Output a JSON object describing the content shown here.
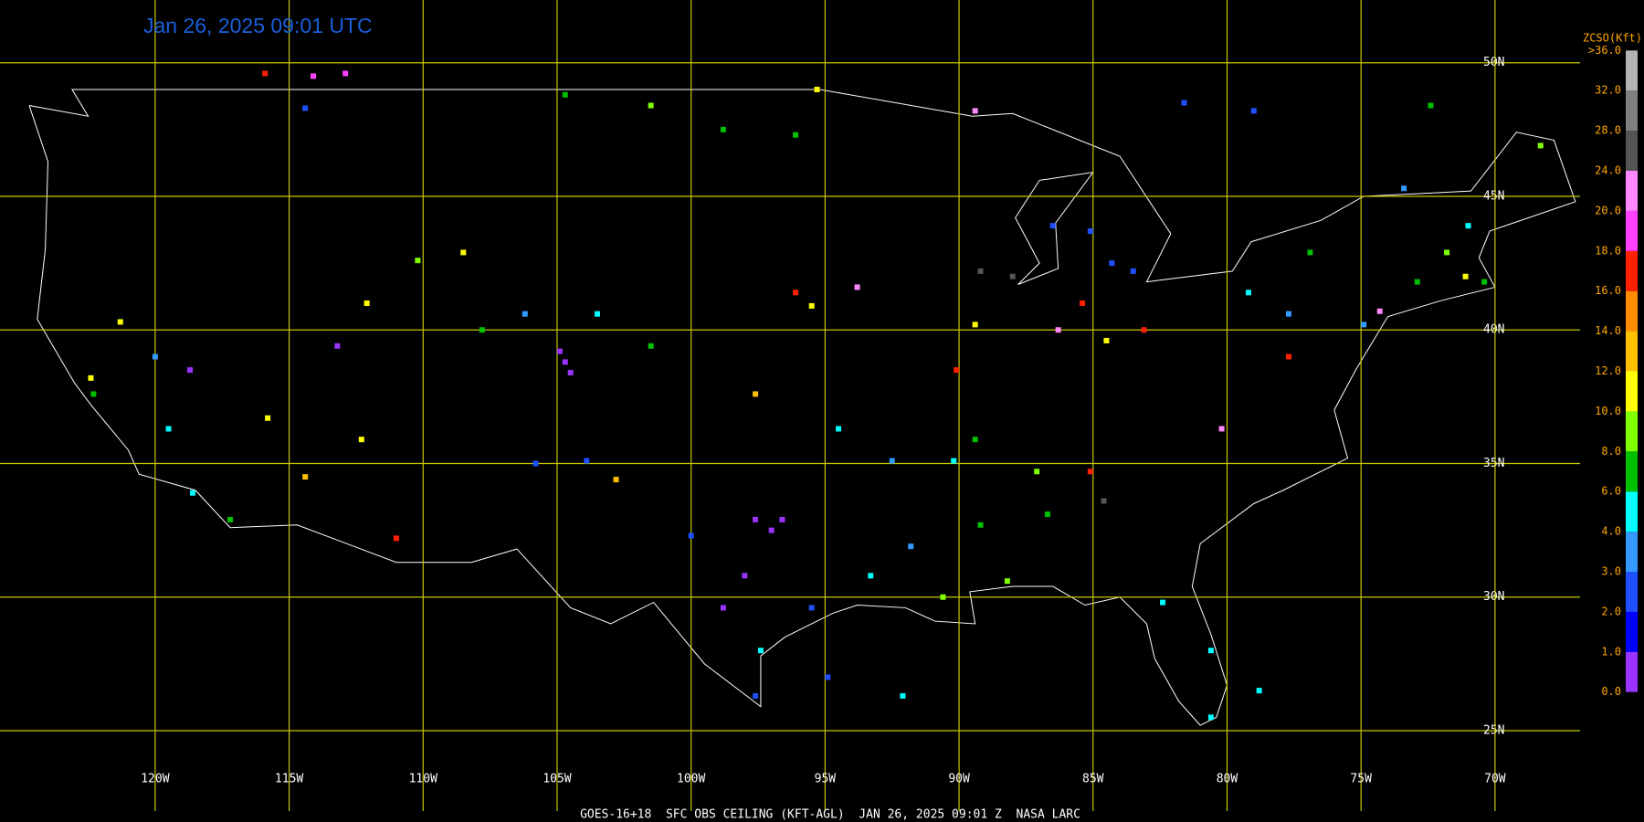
{
  "header": {
    "title": "Jan 26, 2025 09:01 UTC"
  },
  "footer": "GOES-16+18  SFC OBS CEILING (KFT-AGL)  JAN 26, 2025 09:01 Z  NASA LARC",
  "grid": {
    "latitudes": [
      {
        "value": 50,
        "label": "50N"
      },
      {
        "value": 45,
        "label": "45N"
      },
      {
        "value": 40,
        "label": "40N"
      },
      {
        "value": 35,
        "label": "35N"
      },
      {
        "value": 30,
        "label": "30N"
      },
      {
        "value": 25,
        "label": "25N"
      }
    ],
    "longitudes": [
      {
        "value": -120,
        "label": "120W"
      },
      {
        "value": -115,
        "label": "115W"
      },
      {
        "value": -110,
        "label": "110W"
      },
      {
        "value": -105,
        "label": "105W"
      },
      {
        "value": -100,
        "label": "100W"
      },
      {
        "value": -95,
        "label": "95W"
      },
      {
        "value": -90,
        "label": "90W"
      },
      {
        "value": -85,
        "label": "85W"
      },
      {
        "value": -80,
        "label": "80W"
      },
      {
        "value": -75,
        "label": "75W"
      },
      {
        "value": -70,
        "label": "70W"
      }
    ]
  },
  "legend": {
    "title": "ZCSO(Kft)",
    "bins": [
      {
        "value": 0,
        "label": "0.0"
      },
      {
        "value": 1,
        "label": "1.0"
      },
      {
        "value": 2,
        "label": "2.0"
      },
      {
        "value": 3,
        "label": "3.0"
      },
      {
        "value": 4,
        "label": "4.0"
      },
      {
        "value": 6,
        "label": "6.0"
      },
      {
        "value": 8,
        "label": "8.0"
      },
      {
        "value": 10,
        "label": "10.0"
      },
      {
        "value": 12,
        "label": "12.0"
      },
      {
        "value": 14,
        "label": "14.0"
      },
      {
        "value": 16,
        "label": "16.0"
      },
      {
        "value": 18,
        "label": "18.0"
      },
      {
        "value": 20,
        "label": "20.0"
      },
      {
        "value": 24,
        "label": "24.0"
      },
      {
        "value": 28,
        "label": "28.0"
      },
      {
        "value": 32,
        "label": "32.0"
      },
      {
        "value": 36,
        "label": ">36.0"
      }
    ],
    "colors": [
      "#9933ff",
      "#0000ff",
      "#1e50ff",
      "#3399ff",
      "#00ffff",
      "#00c000",
      "#80ff00",
      "#ffff00",
      "#ffc000",
      "#ff8c00",
      "#ff2000",
      "#ff40ff",
      "#ff88ff",
      "#555555",
      "#808080",
      "#b4b4b4"
    ]
  },
  "stations": [
    [
      -115.9,
      49.6,
      17
    ],
    [
      -114.1,
      49.5,
      19
    ],
    [
      -112.9,
      49.6,
      19
    ],
    [
      -114.4,
      48.3,
      2.5
    ],
    [
      -104.7,
      48.8,
      7
    ],
    [
      -101.5,
      48.4,
      9
    ],
    [
      -98.8,
      47.5,
      7
    ],
    [
      -96.1,
      47.3,
      7
    ],
    [
      -110.2,
      42.6,
      9
    ],
    [
      -108.5,
      42.9,
      11
    ],
    [
      -112.1,
      41.0,
      11
    ],
    [
      -121.3,
      40.3,
      11
    ],
    [
      -118.7,
      38.5,
      0.5
    ],
    [
      -119.5,
      36.3,
      5
    ],
    [
      -118.6,
      33.9,
      5
    ],
    [
      -117.2,
      32.9,
      7
    ],
    [
      -122.3,
      37.6,
      7
    ],
    [
      -122.4,
      38.2,
      11
    ],
    [
      -120.0,
      39.0,
      3.5
    ],
    [
      -115.8,
      36.7,
      11
    ],
    [
      -114.4,
      34.5,
      13
    ],
    [
      -111.0,
      32.2,
      17
    ],
    [
      -112.3,
      35.9,
      11
    ],
    [
      -113.2,
      39.4,
      0.5
    ],
    [
      -107.8,
      40.0,
      7
    ],
    [
      -106.2,
      40.6,
      3.5
    ],
    [
      -104.7,
      38.8,
      0.5
    ],
    [
      -104.9,
      39.2,
      0.5
    ],
    [
      -104.5,
      38.4,
      0.5
    ],
    [
      -103.9,
      35.1,
      2.5
    ],
    [
      -102.8,
      34.4,
      13
    ],
    [
      -105.8,
      35.0,
      2.5
    ],
    [
      -103.5,
      40.6,
      4.5
    ],
    [
      -101.5,
      39.4,
      7
    ],
    [
      -97.6,
      37.6,
      13
    ],
    [
      -96.1,
      41.4,
      17
    ],
    [
      -93.8,
      41.6,
      21
    ],
    [
      -95.5,
      40.9,
      11
    ],
    [
      -97.0,
      32.5,
      0.5
    ],
    [
      -97.6,
      32.9,
      0.5
    ],
    [
      -96.6,
      32.9,
      0.5
    ],
    [
      -98.0,
      30.8,
      0.5
    ],
    [
      -98.8,
      29.6,
      0.5
    ],
    [
      -100.0,
      32.3,
      2.5
    ],
    [
      -95.5,
      29.6,
      2.5
    ],
    [
      -97.4,
      28.0,
      5
    ],
    [
      -97.6,
      26.3,
      2.5
    ],
    [
      -94.5,
      36.3,
      5
    ],
    [
      -92.5,
      35.1,
      3
    ],
    [
      -90.2,
      35.1,
      5
    ],
    [
      -89.4,
      35.9,
      7
    ],
    [
      -93.3,
      30.8,
      5
    ],
    [
      -90.6,
      30.0,
      9
    ],
    [
      -88.2,
      30.6,
      9
    ],
    [
      -87.1,
      34.7,
      9
    ],
    [
      -86.7,
      33.1,
      7
    ],
    [
      -89.2,
      32.7,
      7
    ],
    [
      -91.8,
      31.9,
      3
    ],
    [
      -85.1,
      43.7,
      2.5
    ],
    [
      -84.3,
      42.5,
      2.5
    ],
    [
      -86.5,
      43.9,
      2.5
    ],
    [
      -83.5,
      42.2,
      2.5
    ],
    [
      -84.5,
      39.6,
      11
    ],
    [
      -83.1,
      40.0,
      17
    ],
    [
      -86.3,
      40.0,
      21
    ],
    [
      -89.4,
      40.2,
      11
    ],
    [
      -90.1,
      38.5,
      17
    ],
    [
      -85.4,
      41.0,
      17
    ],
    [
      -80.2,
      36.3,
      21
    ],
    [
      -85.1,
      34.7,
      17
    ],
    [
      -84.6,
      33.6,
      25
    ],
    [
      -80.6,
      28.0,
      5
    ],
    [
      -80.6,
      25.5,
      5
    ],
    [
      -82.4,
      29.8,
      5
    ],
    [
      -79.2,
      41.4,
      5
    ],
    [
      -77.7,
      40.6,
      3
    ],
    [
      -76.9,
      42.9,
      7
    ],
    [
      -74.9,
      40.2,
      3
    ],
    [
      -77.7,
      39.0,
      17
    ],
    [
      -74.3,
      40.7,
      21
    ],
    [
      -72.9,
      41.8,
      7
    ],
    [
      -71.1,
      42.0,
      11
    ],
    [
      -70.4,
      41.8,
      7
    ],
    [
      -71.8,
      42.9,
      9
    ],
    [
      -71.0,
      43.9,
      5
    ],
    [
      -68.3,
      46.9,
      9
    ],
    [
      -72.4,
      48.4,
      7
    ],
    [
      -81.6,
      48.5,
      2.5
    ],
    [
      -79.0,
      48.2,
      2.5
    ],
    [
      -73.4,
      45.3,
      3
    ],
    [
      -89.2,
      42.2,
      25
    ],
    [
      -88.0,
      42.0,
      25
    ],
    [
      -89.4,
      48.2,
      21
    ],
    [
      -95.3,
      49.0,
      11
    ],
    [
      -92.1,
      26.3,
      5
    ],
    [
      -94.9,
      27.0,
      2.5
    ],
    [
      -78.8,
      26.5,
      5
    ]
  ]
}
